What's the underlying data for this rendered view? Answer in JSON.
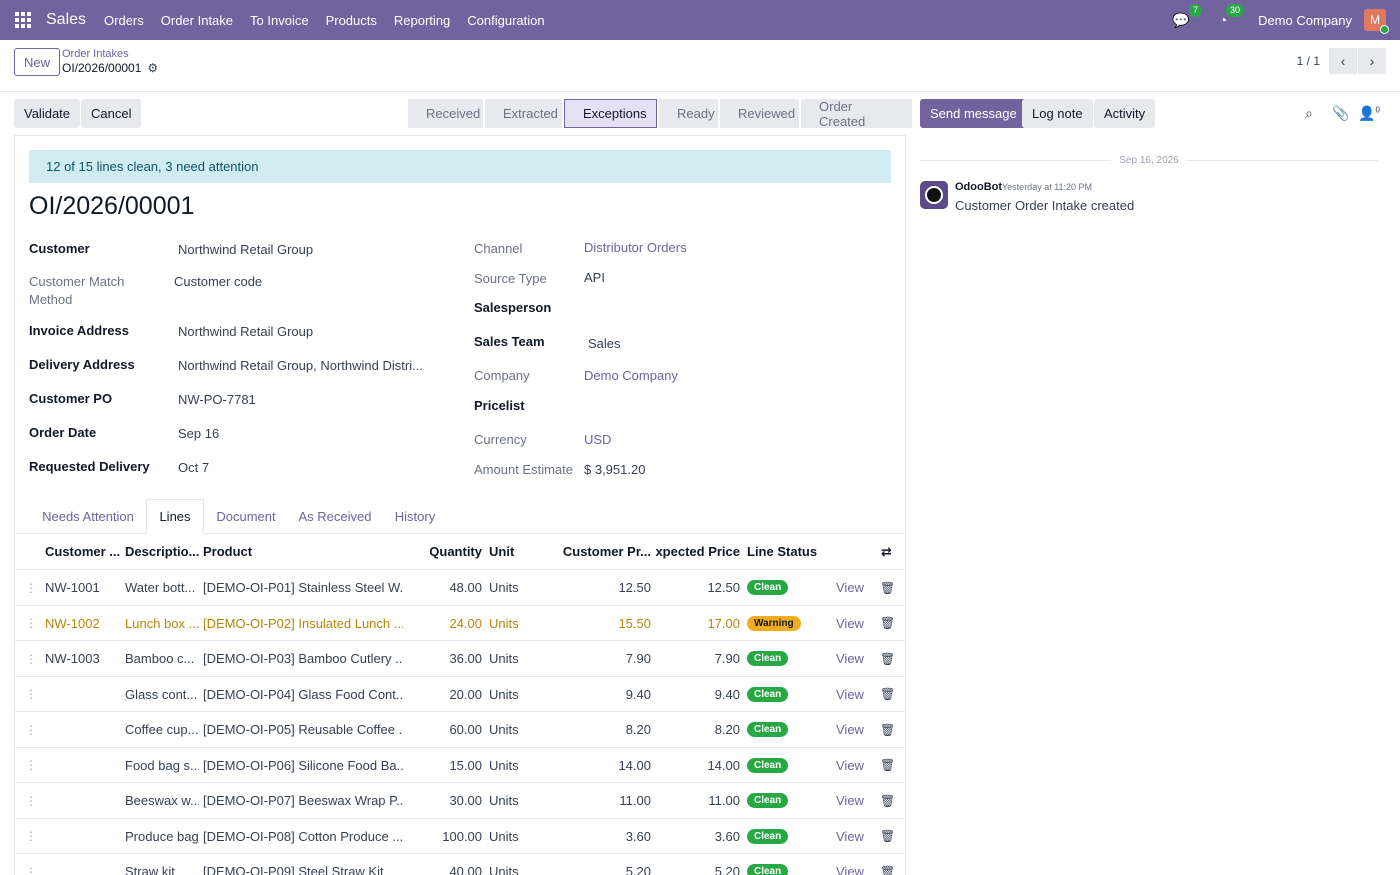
{
  "navbar": {
    "brand": "Sales",
    "menu": [
      "Orders",
      "Order Intake",
      "To Invoice",
      "Products",
      "Reporting",
      "Configuration"
    ],
    "messages_count": "7",
    "activities_count": "30",
    "company": "Demo Company",
    "avatar_letter": "M"
  },
  "control": {
    "new_label": "New",
    "breadcrumb_parent": "Order Intakes",
    "breadcrumb_current": "OI/2026/00001",
    "pager": "1 / 1"
  },
  "actions": {
    "validate": "Validate",
    "cancel": "Cancel"
  },
  "stages": [
    "Received",
    "Extracted",
    "Exceptions",
    "Ready",
    "Reviewed",
    "Order Created"
  ],
  "active_stage": "Exceptions",
  "form": {
    "alert": "12 of 15 lines clean, 3 need attention",
    "title": "OI/2026/00001",
    "left": {
      "customer_label": "Customer",
      "customer_value": "Northwind Retail Group",
      "match_label": "Customer Match Method",
      "match_value": "Customer code",
      "invoice_label": "Invoice Address",
      "invoice_value": "Northwind Retail Group",
      "delivery_label": "Delivery Address",
      "delivery_value": "Northwind Retail Group, Northwind Distri...",
      "po_label": "Customer PO",
      "po_value": "NW-PO-7781",
      "order_date_label": "Order Date",
      "order_date_value": "Sep 16",
      "req_label": "Requested Delivery",
      "req_value": "Oct 7"
    },
    "right": {
      "channel_label": "Channel",
      "channel_value": "Distributor Orders",
      "source_label": "Source Type",
      "source_value": "API",
      "salesperson_label": "Salesperson",
      "team_label": "Sales Team",
      "team_value": "Sales",
      "company_label": "Company",
      "company_value": "Demo Company",
      "pricelist_label": "Pricelist",
      "currency_label": "Currency",
      "currency_value": "USD",
      "amount_label": "Amount Estimate",
      "amount_value": "$ 3,951.20"
    }
  },
  "tabs": [
    "Needs Attention",
    "Lines",
    "Document",
    "As Received",
    "History"
  ],
  "active_tab": "Lines",
  "table": {
    "headers": {
      "customer": "Customer ...",
      "description": "Descriptio...",
      "product": "Product",
      "quantity": "Quantity",
      "unit": "Unit",
      "customer_price": "Customer Pr...",
      "expected_price": "Expected Price",
      "line_status": "Line Status"
    },
    "view_label": "View",
    "rows": [
      {
        "customer": "NW-1001",
        "description": "Water bott...",
        "product": "[DEMO-OI-P01] Stainless Steel W...",
        "quantity": "48.00",
        "unit": "Units",
        "customer_price": "12.50",
        "expected_price": "12.50",
        "status": "Clean"
      },
      {
        "customer": "NW-1002",
        "description": "Lunch box ...",
        "product": "[DEMO-OI-P02] Insulated Lunch ...",
        "quantity": "24.00",
        "unit": "Units",
        "customer_price": "15.50",
        "expected_price": "17.00",
        "status": "Warning"
      },
      {
        "customer": "NW-1003",
        "description": "Bamboo c...",
        "product": "[DEMO-OI-P03] Bamboo Cutlery ...",
        "quantity": "36.00",
        "unit": "Units",
        "customer_price": "7.90",
        "expected_price": "7.90",
        "status": "Clean"
      },
      {
        "customer": "",
        "description": "Glass cont...",
        "product": "[DEMO-OI-P04] Glass Food Cont...",
        "quantity": "20.00",
        "unit": "Units",
        "customer_price": "9.40",
        "expected_price": "9.40",
        "status": "Clean"
      },
      {
        "customer": "",
        "description": "Coffee cup...",
        "product": "[DEMO-OI-P05] Reusable Coffee ...",
        "quantity": "60.00",
        "unit": "Units",
        "customer_price": "8.20",
        "expected_price": "8.20",
        "status": "Clean"
      },
      {
        "customer": "",
        "description": "Food bag s...",
        "product": "[DEMO-OI-P06] Silicone Food Ba...",
        "quantity": "15.00",
        "unit": "Units",
        "customer_price": "14.00",
        "expected_price": "14.00",
        "status": "Clean"
      },
      {
        "customer": "",
        "description": "Beeswax w...",
        "product": "[DEMO-OI-P07] Beeswax Wrap P...",
        "quantity": "30.00",
        "unit": "Units",
        "customer_price": "11.00",
        "expected_price": "11.00",
        "status": "Clean"
      },
      {
        "customer": "",
        "description": "Produce bag",
        "product": "[DEMO-OI-P08] Cotton Produce ...",
        "quantity": "100.00",
        "unit": "Units",
        "customer_price": "3.60",
        "expected_price": "3.60",
        "status": "Clean"
      },
      {
        "customer": "",
        "description": "Straw kit",
        "product": "[DEMO-OI-P09] Steel Straw Kit",
        "quantity": "40.00",
        "unit": "Units",
        "customer_price": "5.20",
        "expected_price": "5.20",
        "status": "Clean"
      }
    ]
  },
  "chatter": {
    "send_message": "Send message",
    "log_note": "Log note",
    "activity": "Activity",
    "followers_count": "0",
    "date_separator": "Sep 16, 2026",
    "message": {
      "author": "OdooBot",
      "time": "Yesterday at 11:20 PM",
      "body": "Customer Order Intake created"
    }
  },
  "colors": {
    "brand": "#71639e",
    "clean": "#28a745",
    "warning": "#f0ad1f",
    "alert_bg": "#d1ecf1"
  }
}
